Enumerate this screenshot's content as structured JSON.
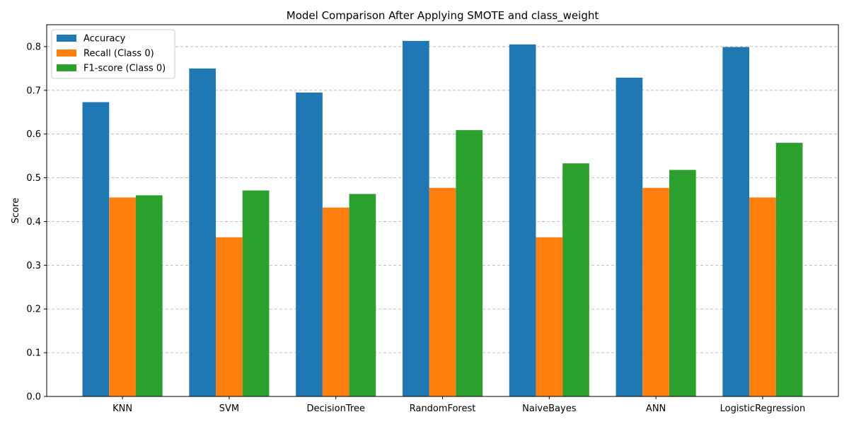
{
  "chart_data": {
    "type": "bar",
    "title": "Model Comparison After Applying SMOTE and class_weight",
    "xlabel": "",
    "ylabel": "Score",
    "categories": [
      "KNN",
      "SVM",
      "DecisionTree",
      "RandomForest",
      "NaiveBayes",
      "ANN",
      "LogisticRegression"
    ],
    "series": [
      {
        "name": "Accuracy",
        "color": "#1f77b4",
        "values": [
          0.673,
          0.75,
          0.695,
          0.813,
          0.805,
          0.729,
          0.799
        ]
      },
      {
        "name": "Recall (Class 0)",
        "color": "#ff7f0e",
        "values": [
          0.455,
          0.364,
          0.432,
          0.477,
          0.364,
          0.477,
          0.455
        ]
      },
      {
        "name": "F1-score (Class 0)",
        "color": "#2ca02c",
        "values": [
          0.46,
          0.471,
          0.463,
          0.609,
          0.533,
          0.518,
          0.58
        ]
      }
    ],
    "ylim": [
      0,
      0.85
    ],
    "yticks": [
      "0.0",
      "0.1",
      "0.2",
      "0.3",
      "0.4",
      "0.5",
      "0.6",
      "0.7",
      "0.8"
    ],
    "grid": "y-dashed",
    "legend_position": "top-left"
  }
}
